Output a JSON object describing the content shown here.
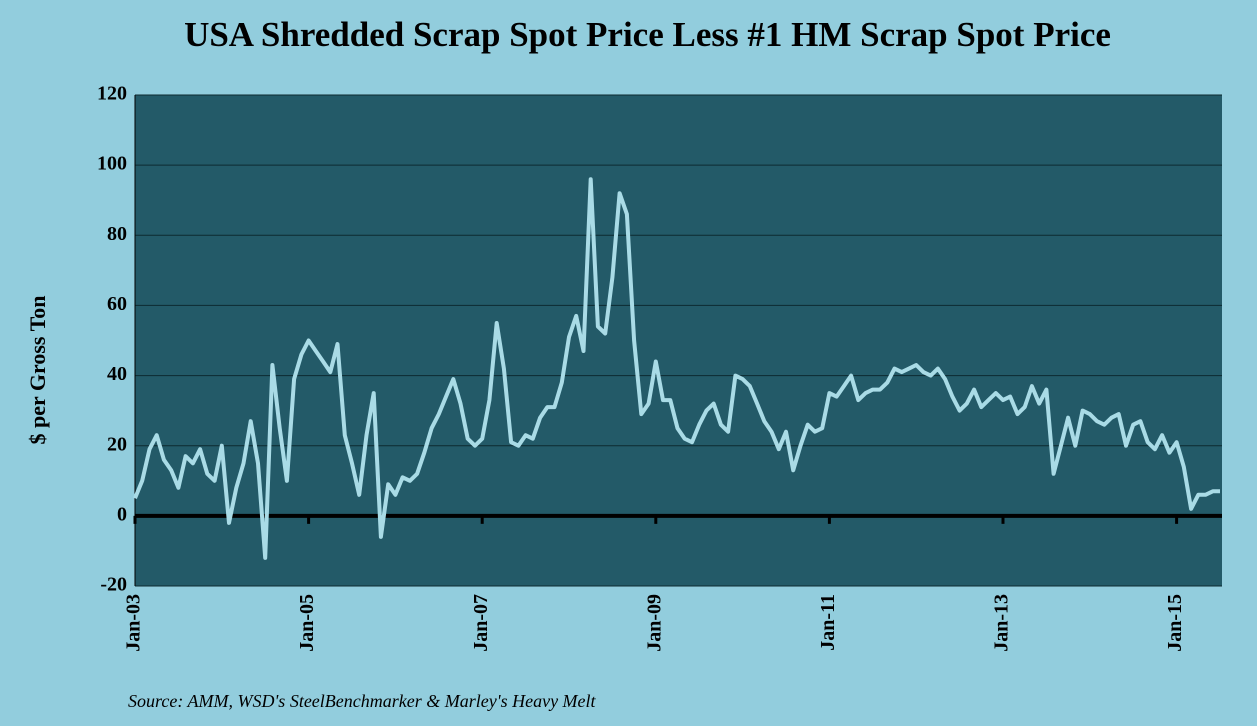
{
  "chart_data": {
    "type": "line",
    "title": "USA Shredded Scrap Spot Price Less #1 HM Scrap Spot Price",
    "y_label": "$ per Gross Ton",
    "source": "Source:  AMM, WSD's SteelBenchmarker & Marley's Heavy Melt",
    "categories": [
      "Jan-03",
      null,
      null,
      null,
      null,
      null,
      null,
      null,
      null,
      null,
      null,
      null,
      null,
      null,
      null,
      null,
      null,
      null,
      null,
      null,
      null,
      null,
      null,
      null,
      "Jan-05",
      null,
      null,
      null,
      null,
      null,
      null,
      null,
      null,
      null,
      null,
      null,
      null,
      null,
      null,
      null,
      null,
      null,
      null,
      null,
      null,
      null,
      null,
      null,
      "Jan-07",
      null,
      null,
      null,
      null,
      null,
      null,
      null,
      null,
      null,
      null,
      null,
      null,
      null,
      null,
      null,
      null,
      null,
      null,
      null,
      null,
      null,
      null,
      null,
      "Jan-09",
      null,
      null,
      null,
      null,
      null,
      null,
      null,
      null,
      null,
      null,
      null,
      null,
      null,
      null,
      null,
      null,
      null,
      null,
      null,
      null,
      null,
      null,
      null,
      "Jan-11",
      null,
      null,
      null,
      null,
      null,
      null,
      null,
      null,
      null,
      null,
      null,
      null,
      null,
      null,
      null,
      null,
      null,
      null,
      null,
      null,
      null,
      null,
      null,
      "Jan-13",
      null,
      null,
      null,
      null,
      null,
      null,
      null,
      null,
      null,
      null,
      null,
      null,
      null,
      null,
      null,
      null,
      null,
      null,
      null,
      null,
      null,
      null,
      null,
      "Jan-15",
      null,
      null,
      null,
      null,
      null,
      null
    ],
    "values": [
      5,
      10,
      19,
      23,
      16,
      13,
      8,
      17,
      15,
      19,
      12,
      10,
      20,
      -2,
      8,
      15,
      27,
      15,
      -12,
      43,
      25,
      10,
      39,
      46,
      50,
      47,
      44,
      41,
      49,
      23,
      15,
      6,
      23,
      35,
      -6,
      9,
      6,
      11,
      10,
      12,
      18,
      25,
      29,
      34,
      39,
      32,
      22,
      20,
      22,
      33,
      55,
      42,
      21,
      20,
      23,
      22,
      28,
      31,
      31,
      38,
      51,
      57,
      47,
      96,
      54,
      52,
      68,
      92,
      86,
      50,
      29,
      32,
      44,
      33,
      33,
      25,
      22,
      21,
      26,
      30,
      32,
      26,
      24,
      40,
      39,
      37,
      32,
      27,
      24,
      19,
      24,
      13,
      20,
      26,
      24,
      25,
      35,
      34,
      37,
      40,
      33,
      35,
      36,
      36,
      38,
      42,
      41,
      42,
      43,
      41,
      40,
      42,
      39,
      34,
      30,
      32,
      36,
      31,
      33,
      35,
      33,
      34,
      29,
      31,
      37,
      32,
      36,
      12,
      20,
      28,
      20,
      30,
      29,
      27,
      26,
      28,
      29,
      20,
      26,
      27,
      21,
      19,
      23,
      18,
      21,
      14,
      2,
      6,
      6,
      7,
      7
    ],
    "color": "#a9dbe6",
    "ylim": [
      -20,
      120
    ],
    "yticks": [
      -20,
      0,
      20,
      40,
      60,
      80,
      100,
      120
    ],
    "grid": true
  }
}
